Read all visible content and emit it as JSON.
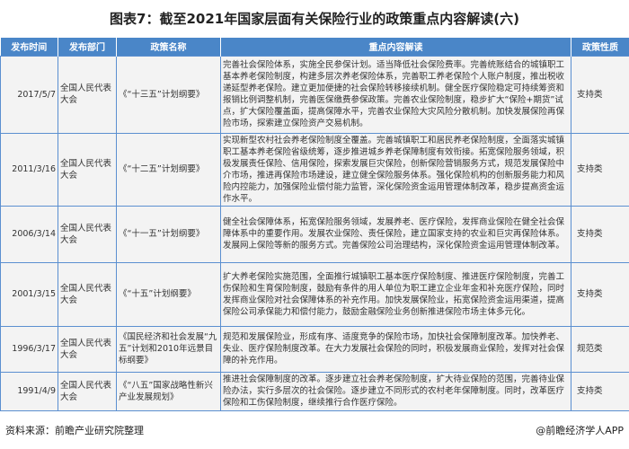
{
  "title": "图表7：截至2021年国家层面有关保险行业的政策重点内容解读(六)",
  "headers": [
    "发布时间",
    "发布部门",
    "政策名称",
    "重点内容解读",
    "政策性质"
  ],
  "rows": [
    {
      "date": "2017/5/7",
      "dept": "全国人民代表大会",
      "name": "《“十三五”计划纲要》",
      "content": "完善社会保险体系，实施全民参保计划。适当降低社会保险费率。完善统账结合的城镇职工基本养老保险制度，构建多层次养老保险体系，完善职工养老保险个人账户制度，推出税收递延型养老保险。建立更加便捷的社会保险转移接续机制。健全医疗保险稳定可持续筹资和报销比例调整机制，完善医保缴费参保政策。完善农业保险制度，稳步扩大“保险+期货”试点，扩大保险覆盖面，提高保障水平，完善农业保险大灾风险分散机制。加快发展保险再保险市场，探索建立保险资产交易机制。",
      "type": "支持类"
    },
    {
      "date": "2011/3/16",
      "dept": "全国人民代表大会",
      "name": "《“十二五”计划纲要》",
      "content": "实现新型农村社会养老保险制度全覆盖。完善城镇职工和居民养老保险制度，全面落实城镇职工基本养老保险省级统筹，逐步推进城乡养老保障制度有效衔接。拓宽保险服务领域，积极发展责任保险、信用保险，探索发展巨灾保险，创新保险营销服务方式，规范发展保险中介市场，推进再保险市场建设，建立健全保险服务体系。强化保险机构的创新服务能力和风险内控能力，加强保险业偿付能力监管，深化保险资金运用管理体制改革，稳步提高资金运作水平。",
      "type": "支持类"
    },
    {
      "date": "2006/3/14",
      "dept": "全国人民代表大会",
      "name": "《“十一五”计划纲要》",
      "content": "健全社会保障体系，拓宽保险服务领域，发展养老、医疗保险，发挥商业保险在健全社会保障体系中的重要作用。发展农业保险、责任保险，建立国家支持的农业和巨灾再保险体系。发展网上保险等新的服务方式。完善保险公司治理结构，深化保险资金运用管理体制改革。",
      "type": "支持类"
    },
    {
      "date": "2001/3/15",
      "dept": "全国人民代表大会",
      "name": "《“十五”计划纲要》",
      "content": "扩大养老保险实施范围，全面推行城镇职工基本医疗保险制度、推进医疗保险制度，完善工伤保险和生育保险制度，鼓励有条件的用人单位为职工建立企业年金和补充医疗保险，同时发挥商业保险对社会保障体系的补充作用。加快发展保险业，拓宽保险资金运用渠道，提高保险公司承保能力和偿付能力，鼓励金融保险业务创新推进保险市场主体多元化。",
      "type": "支持类"
    },
    {
      "date": "1996/3/17",
      "dept": "全国人民代表大会",
      "name": "《国民经济和社会发展“九五”计划和2010年远景目标纲要》",
      "content": "规范和发展保险业，形成有序、适度竞争的保险市场，加快社会保障制度改革。加快养老、失业、医疗保险制度改革。在大力发展社会保险的同时，积极发展商业保险，发挥对社会保障的补充作用。",
      "type": "规范类"
    },
    {
      "date": "1991/4/9",
      "dept": "全国人民代表大会",
      "name": "《“八五”国家战略性新兴产业发展规划》",
      "content": "推进社会保障制度的改革。逐步建立社会养老保险制度，扩大待业保险的范围，完善待业保险办法，实行多层次的社会保险。逐步建立不同形式的农村老年保障制度。同时，改革医疗保险和工伤保险制度，继续推行合作医疗保险。",
      "type": "支持类"
    }
  ],
  "footer": {
    "source": "资料来源：前瞻产业研究院整理",
    "brand": "@前瞻经济学人APP"
  },
  "colors": {
    "header": "#4a86c8",
    "border": "#5b8fd0"
  }
}
